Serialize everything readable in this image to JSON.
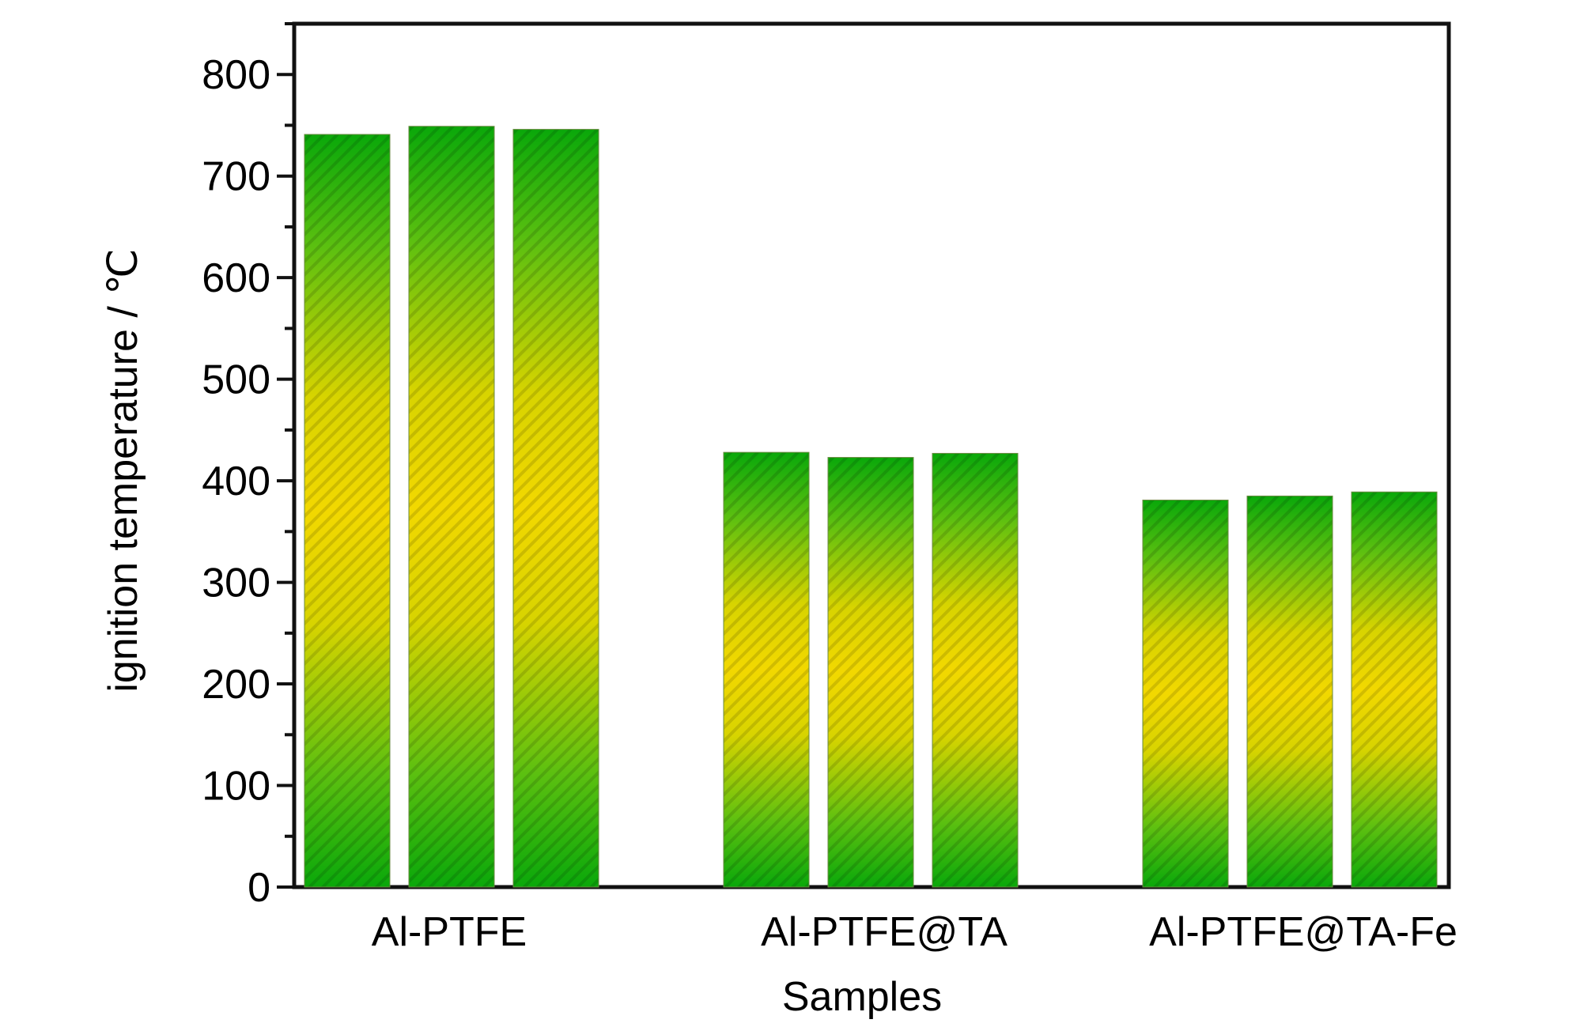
{
  "chart_data": {
    "type": "bar",
    "categories": [
      "Al-PTFE",
      "Al-PTFE@TA",
      "Al-PTFE@TA-Fe"
    ],
    "series": [
      {
        "values": [
          741,
          428,
          381
        ]
      },
      {
        "values": [
          749,
          423,
          385
        ]
      },
      {
        "values": [
          746,
          427,
          389
        ]
      }
    ],
    "xlabel": "Samples",
    "ylabel": "ignition temperature / ℃",
    "ylim": [
      0,
      850
    ],
    "yticks": [
      0,
      100,
      200,
      300,
      400,
      500,
      600,
      700,
      800
    ],
    "grid": false,
    "bar_fill": "green-yellow-green gradient with diagonal hatching",
    "colors": {
      "bar_green": "#12b012",
      "bar_yellow": "#f0d800",
      "axis": "#111111"
    }
  }
}
